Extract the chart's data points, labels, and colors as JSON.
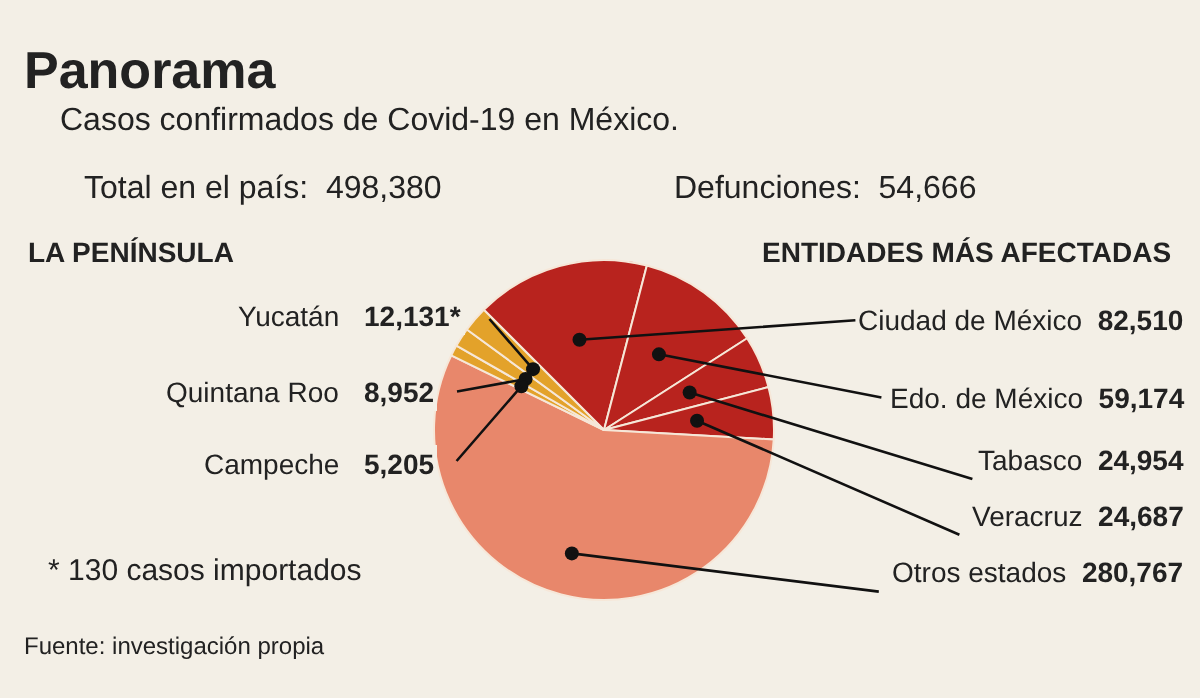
{
  "chart_data": {
    "type": "pie",
    "title": "Panorama",
    "subtitle": "Casos confirmados de Covid-19 en México.",
    "categories": [
      "Ciudad de México",
      "Edo. de México",
      "Tabasco",
      "Veracruz",
      "Otros estados",
      "Campeche",
      "Quintana Roo",
      "Yucatán"
    ],
    "values": [
      82510,
      59174,
      24954,
      24687,
      280767,
      5205,
      8952,
      12131
    ],
    "colors": [
      "#b8231e",
      "#b8231e",
      "#b8231e",
      "#b8231e",
      "#e8876b",
      "#e3a22a",
      "#e3a22a",
      "#e3a22a"
    ],
    "value_labels": [
      "82,510",
      "59,174",
      "24,954",
      "24,687",
      "280,767",
      "5,205",
      "8,952",
      "12,131*"
    ],
    "annotations": [
      "Total en el país:  498,380",
      "Defunciones:  54,666",
      "LA PENÍNSULA",
      "ENTIDADES MÁS AFECTADAS",
      "* 130 casos importados",
      "Fuente: investigación propia"
    ]
  }
}
